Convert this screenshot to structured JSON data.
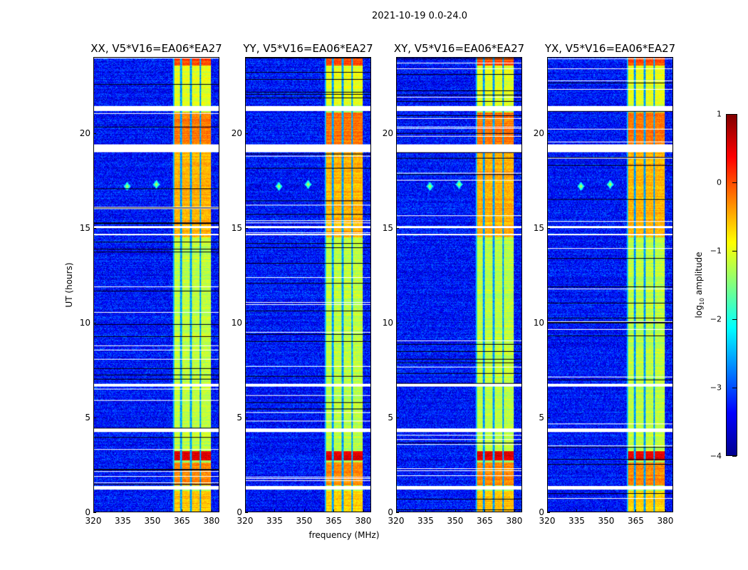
{
  "chart_data": {
    "type": "heatmap",
    "suptitle": "2021-10-19 0.0-24.0",
    "xlabel": "frequency (MHz)",
    "ylabel": "UT (hours)",
    "xlim": [
      320,
      384
    ],
    "ylim": [
      0,
      24
    ],
    "xticks": [
      320,
      335,
      350,
      365,
      380
    ],
    "yticks": [
      0,
      5,
      10,
      15,
      20
    ],
    "panels": [
      {
        "title": "XX, V5*V16=EA06*EA27"
      },
      {
        "title": "YY, V5*V16=EA06*EA27"
      },
      {
        "title": "XY, V5*V16=EA06*EA27"
      },
      {
        "title": "YX, V5*V16=EA06*EA27"
      }
    ],
    "colorbar": {
      "label_main": "log",
      "label_sub": "10",
      "label_rest": " amplitude",
      "range": [
        -4,
        1
      ],
      "ticks": [
        "1",
        "0",
        "−1",
        "−2",
        "−3",
        "−4"
      ],
      "tick_values": [
        1,
        0,
        -1,
        -2,
        -3,
        -4
      ],
      "colormap": "jet"
    },
    "structure": {
      "background_level": -3.3,
      "band_mhz": [
        360.5,
        380
      ],
      "subband_gaps_mhz": [
        364.6,
        369.6,
        374.6
      ],
      "band_levels": [
        {
          "hours": [
            0,
            1.1
          ],
          "level": -0.6
        },
        {
          "hours": [
            1.4,
            2.6
          ],
          "level": -0.3
        },
        {
          "hours": [
            2.7,
            3.2
          ],
          "level": 0.5
        },
        {
          "hours": [
            3.2,
            14.5
          ],
          "level": -1.2
        },
        {
          "hours": [
            14.5,
            19.0
          ],
          "level": -0.5
        },
        {
          "hours": [
            19.4,
            21.1
          ],
          "level": -0.2
        },
        {
          "hours": [
            21.5,
            23.6
          ],
          "level": -1.0
        },
        {
          "hours": [
            23.6,
            24
          ],
          "level": 0.0
        }
      ],
      "flagged_hours": [
        [
          1.15,
          1.35
        ],
        [
          4.2,
          4.4
        ],
        [
          6.6,
          6.75
        ],
        [
          14.6,
          14.7
        ],
        [
          15.0,
          15.1
        ],
        [
          19.0,
          19.4
        ],
        [
          21.2,
          21.45
        ]
      ],
      "rfi_spikes": [
        {
          "mhz": 337,
          "hours": 17.2
        },
        {
          "mhz": 352,
          "hours": 17.3
        }
      ]
    }
  }
}
